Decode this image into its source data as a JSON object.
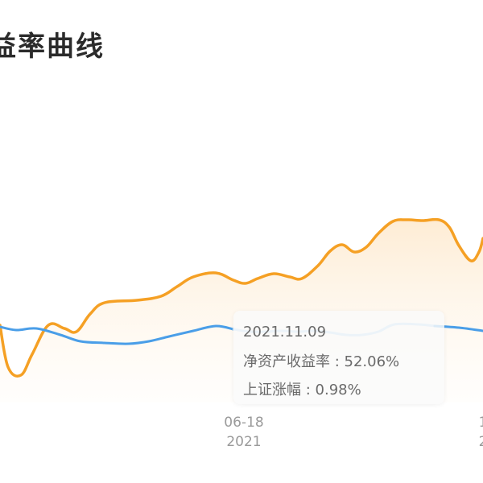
{
  "header": {
    "title": "益率曲线"
  },
  "chart_data": {
    "type": "line",
    "x_tick_labels": [
      {
        "date": "06-18",
        "year": "2021"
      },
      {
        "date": "1",
        "year": "2"
      }
    ],
    "series": [
      {
        "key": "nav",
        "color": "#f5a024",
        "fill": "area",
        "points": [
          [
            0,
            404
          ],
          [
            10,
            456
          ],
          [
            26,
            466
          ],
          [
            40,
            440
          ],
          [
            60,
            404
          ],
          [
            80,
            408
          ],
          [
            95,
            412
          ],
          [
            112,
            390
          ],
          [
            130,
            376
          ],
          [
            170,
            373
          ],
          [
            200,
            368
          ],
          [
            220,
            356
          ],
          [
            240,
            344
          ],
          [
            268,
            339
          ],
          [
            290,
            348
          ],
          [
            305,
            352
          ],
          [
            320,
            346
          ],
          [
            340,
            340
          ],
          [
            360,
            344
          ],
          [
            375,
            346
          ],
          [
            395,
            330
          ],
          [
            410,
            312
          ],
          [
            425,
            304
          ],
          [
            440,
            313
          ],
          [
            455,
            307
          ],
          [
            470,
            290
          ],
          [
            488,
            275
          ],
          [
            505,
            273
          ],
          [
            525,
            274
          ],
          [
            545,
            273
          ],
          [
            558,
            282
          ],
          [
            570,
            305
          ],
          [
            585,
            324
          ],
          [
            595,
            313
          ],
          [
            600,
            296
          ]
        ]
      },
      {
        "key": "index",
        "color": "#4a9ee8",
        "points": [
          [
            0,
            406
          ],
          [
            20,
            410
          ],
          [
            45,
            408
          ],
          [
            75,
            416
          ],
          [
            100,
            424
          ],
          [
            130,
            426
          ],
          [
            160,
            427
          ],
          [
            185,
            424
          ],
          [
            210,
            418
          ],
          [
            240,
            411
          ],
          [
            268,
            405
          ],
          [
            290,
            409
          ],
          [
            310,
            412
          ],
          [
            330,
            412
          ],
          [
            350,
            411
          ],
          [
            370,
            412
          ],
          [
            390,
            411
          ],
          [
            410,
            413
          ],
          [
            430,
            416
          ],
          [
            450,
            416
          ],
          [
            470,
            412
          ],
          [
            490,
            403
          ],
          [
            520,
            403
          ],
          [
            540,
            405
          ],
          [
            570,
            407
          ],
          [
            600,
            411
          ]
        ]
      }
    ],
    "highlight_range": [
      290,
      552
    ],
    "tooltip": {
      "date": "2021.11.09",
      "nav_return_label": "净资产收益率",
      "nav_return_value": "52.06%",
      "index_change_label": "上证涨幅",
      "index_change_value": "0.98%"
    }
  }
}
